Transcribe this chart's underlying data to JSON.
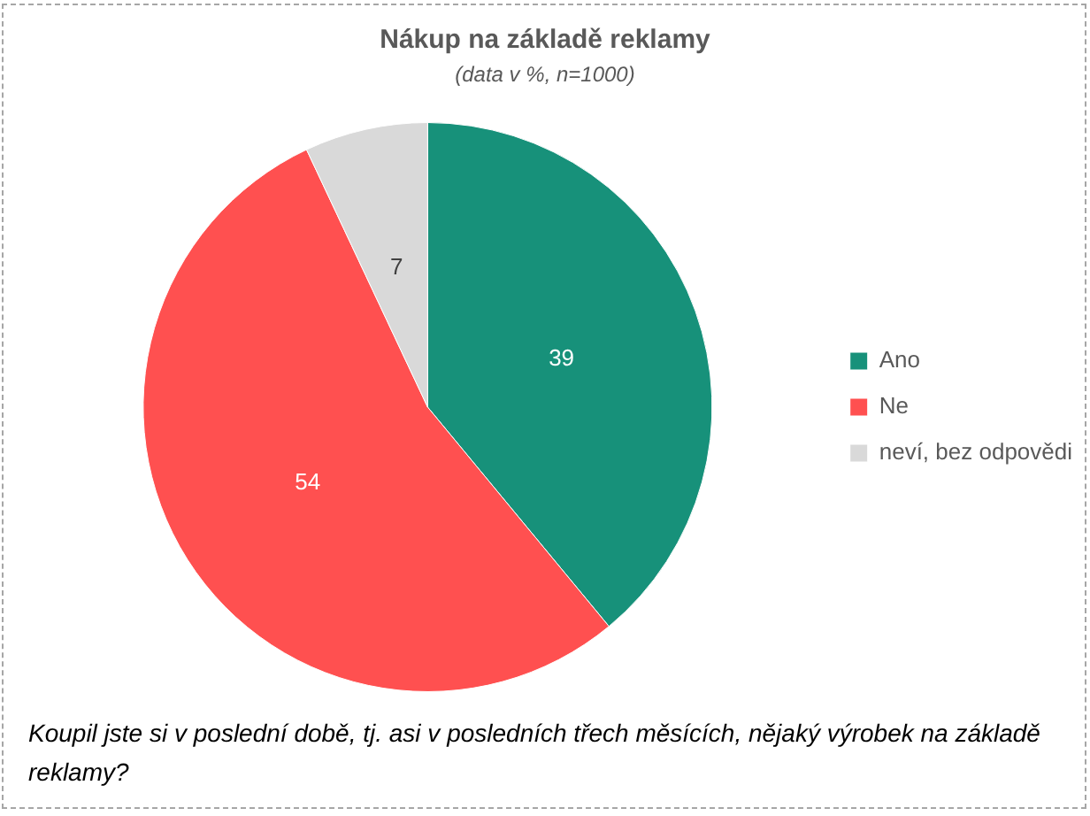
{
  "chart_data": {
    "type": "pie",
    "title": "Nákup na základě reklamy",
    "subtitle": "(data v %, n=1000)",
    "categories": [
      "Ano",
      "Ne",
      "neví, bez odpovědi"
    ],
    "values": [
      39,
      54,
      7
    ],
    "colors": [
      "#17917a",
      "#ff5050",
      "#d9d9d9"
    ],
    "data_labels": true,
    "legend": "right",
    "annotations": [
      "Koupil jste si v poslední době, tj. asi v posledních třech měsících, nějaký výrobek na základě reklamy?"
    ]
  }
}
